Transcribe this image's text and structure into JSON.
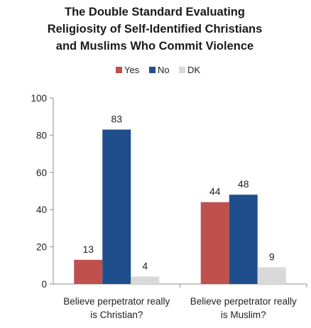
{
  "chart_data": {
    "type": "bar",
    "title": [
      "The Double Standard Evaluating",
      "Religiosity of Self-Identified Christians",
      "and Muslims Who Commit Violence"
    ],
    "categories": [
      [
        "Believe perpetrator really",
        "is Christian?"
      ],
      [
        "Believe perpetrator really",
        "is Muslim?"
      ]
    ],
    "series": [
      {
        "name": "Yes",
        "color": "#C0504D",
        "values": [
          13,
          44
        ]
      },
      {
        "name": "No",
        "color": "#1F4E8C",
        "values": [
          83,
          48
        ]
      },
      {
        "name": "DK",
        "color": "#D9D9D9",
        "values": [
          4,
          9
        ]
      }
    ],
    "ylim": [
      0,
      100
    ],
    "yticks": [
      0,
      20,
      40,
      60,
      80,
      100
    ],
    "legend_position": "top",
    "grid": false
  }
}
